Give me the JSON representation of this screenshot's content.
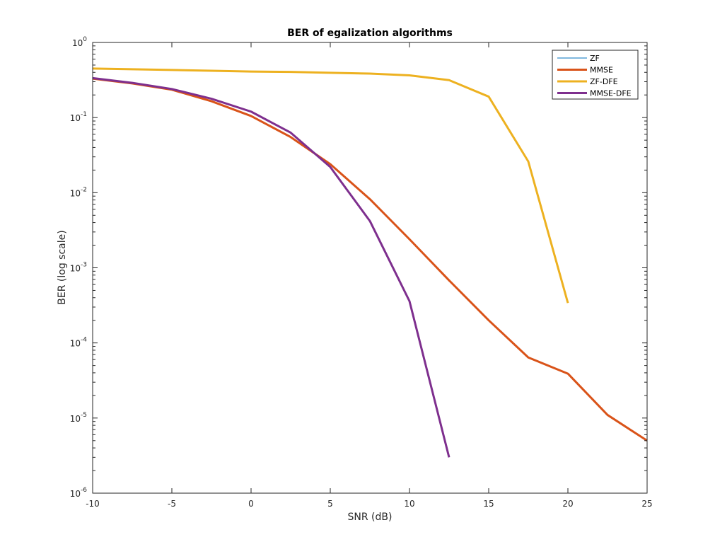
{
  "chart_data": {
    "type": "line",
    "title": "BER of egalization algorithms",
    "xlabel": "SNR (dB)",
    "ylabel": "BER (log scale)",
    "xlim": [
      -10,
      25
    ],
    "ylim": [
      1e-06,
      1
    ],
    "yscale": "log",
    "xticks": [
      -10,
      -5,
      0,
      5,
      10,
      15,
      20,
      25
    ],
    "xtick_labels": [
      "-10",
      "-5",
      "0",
      "5",
      "10",
      "15",
      "20",
      "25"
    ],
    "yticks": [
      {
        "base": "10",
        "exp": "0",
        "value": 1
      },
      {
        "base": "10",
        "exp": "-1",
        "value": 0.1
      },
      {
        "base": "10",
        "exp": "-2",
        "value": 0.01
      },
      {
        "base": "10",
        "exp": "-3",
        "value": 0.001
      },
      {
        "base": "10",
        "exp": "-4",
        "value": 0.0001
      },
      {
        "base": "10",
        "exp": "-5",
        "value": 1e-05
      },
      {
        "base": "10",
        "exp": "-6",
        "value": 1e-06
      }
    ],
    "grid": false,
    "legend_position": "top-right",
    "series": [
      {
        "name": "ZF",
        "color": "#0072BD",
        "line_width": 1,
        "x": [
          -10,
          -7.5,
          -5,
          -2.5,
          0,
          2.5,
          5,
          7.5,
          10,
          12.5,
          15,
          17.5,
          20,
          22.5,
          25
        ],
        "y": [
          0.33,
          0.285,
          0.235,
          0.165,
          0.105,
          0.055,
          0.024,
          0.0082,
          0.0024,
          0.00068,
          0.0002,
          6.4e-05,
          3.9e-05,
          1.1e-05,
          5e-06
        ]
      },
      {
        "name": "MMSE",
        "color": "#D95319",
        "line_width": 3,
        "x": [
          -10,
          -7.5,
          -5,
          -2.5,
          0,
          2.5,
          5,
          7.5,
          10,
          12.5,
          15,
          17.5,
          20,
          22.5,
          25
        ],
        "y": [
          0.33,
          0.285,
          0.235,
          0.165,
          0.105,
          0.055,
          0.024,
          0.0082,
          0.0024,
          0.00068,
          0.0002,
          6.4e-05,
          3.9e-05,
          1.1e-05,
          5e-06
        ]
      },
      {
        "name": "ZF-DFE",
        "color": "#EDB120",
        "line_width": 3,
        "x": [
          -10,
          -7.5,
          -5,
          -2.5,
          0,
          2.5,
          5,
          7.5,
          10,
          12.5,
          15,
          17.5,
          20
        ],
        "y": [
          0.45,
          0.44,
          0.43,
          0.42,
          0.41,
          0.405,
          0.395,
          0.385,
          0.365,
          0.315,
          0.19,
          0.026,
          0.00034
        ]
      },
      {
        "name": "MMSE-DFE",
        "color": "#7E2F8E",
        "line_width": 3,
        "x": [
          -10,
          -7.5,
          -5,
          -2.5,
          0,
          2.5,
          5,
          7.5,
          10,
          12.5
        ],
        "y": [
          0.335,
          0.29,
          0.24,
          0.178,
          0.12,
          0.063,
          0.022,
          0.0042,
          0.00036,
          3e-06
        ]
      }
    ]
  }
}
